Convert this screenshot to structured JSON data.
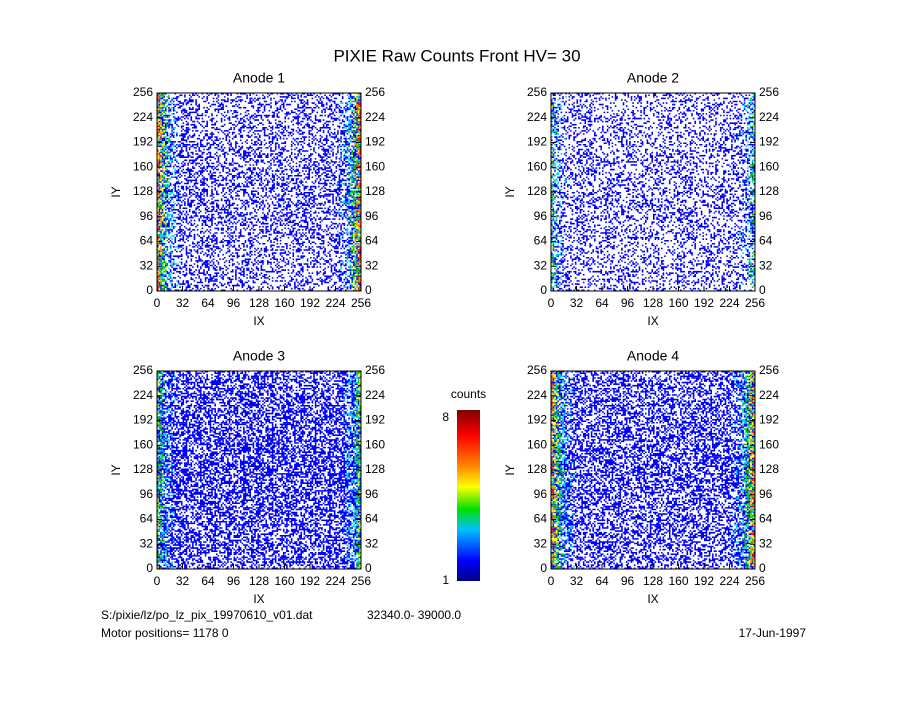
{
  "title": "PIXIE Raw Counts Front HV= 30",
  "chart_data": [
    {
      "type": "heatmap",
      "title": "Anode 1",
      "xlabel": "IX",
      "ylabel": "IY",
      "xlim": [
        0,
        256
      ],
      "ylim": [
        0,
        256
      ],
      "xticks": [
        0,
        32,
        64,
        96,
        128,
        160,
        192,
        224,
        256
      ],
      "yticks": [
        0,
        32,
        64,
        96,
        128,
        160,
        192,
        224,
        256
      ]
    },
    {
      "type": "heatmap",
      "title": "Anode 2",
      "xlabel": "IX",
      "ylabel": "IY",
      "xlim": [
        0,
        256
      ],
      "ylim": [
        0,
        256
      ],
      "xticks": [
        0,
        32,
        64,
        96,
        128,
        160,
        192,
        224,
        256
      ],
      "yticks": [
        0,
        32,
        64,
        96,
        128,
        160,
        192,
        224,
        256
      ]
    },
    {
      "type": "heatmap",
      "title": "Anode 3",
      "xlabel": "IX",
      "ylabel": "IY",
      "xlim": [
        0,
        256
      ],
      "ylim": [
        0,
        256
      ],
      "xticks": [
        0,
        32,
        64,
        96,
        128,
        160,
        192,
        224,
        256
      ],
      "yticks": [
        0,
        32,
        64,
        96,
        128,
        160,
        192,
        224,
        256
      ]
    },
    {
      "type": "heatmap",
      "title": "Anode 4",
      "xlabel": "IX",
      "ylabel": "IY",
      "xlim": [
        0,
        256
      ],
      "ylim": [
        0,
        256
      ],
      "xticks": [
        0,
        32,
        64,
        96,
        128,
        160,
        192,
        224,
        256
      ],
      "yticks": [
        0,
        32,
        64,
        96,
        128,
        160,
        192,
        224,
        256
      ]
    }
  ],
  "colorbar": {
    "label": "counts",
    "lim": [
      1,
      8
    ],
    "ticks": [
      1,
      8
    ]
  },
  "footer": {
    "file": "S:/pixie/lz/po_lz_pix_19970610_v01.dat",
    "range": "32340.0- 39000.0",
    "motor": "Motor positions= 1178 0",
    "date": "17-Jun-1997"
  }
}
